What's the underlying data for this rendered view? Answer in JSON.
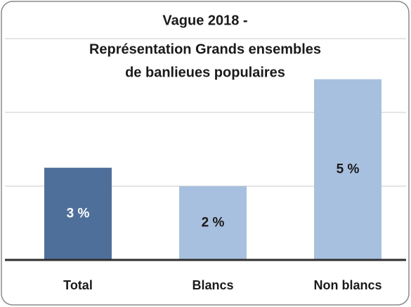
{
  "chart_data": {
    "type": "bar",
    "title": [
      "Vague 2018 -",
      "Représentation Grands ensembles",
      "de banlieues populaires"
    ],
    "categories": [
      "Total",
      "Blancs",
      "Non blancs"
    ],
    "values": [
      2.5,
      2,
      4.9
    ],
    "value_labels": [
      "3 %",
      "2 %",
      "5 %"
    ],
    "colors": [
      "#4f6f9b",
      "#a8c0df",
      "#a8c0df"
    ],
    "ylim": [
      0,
      6
    ],
    "yticks": [
      0,
      2,
      4,
      6
    ],
    "grid": true
  }
}
